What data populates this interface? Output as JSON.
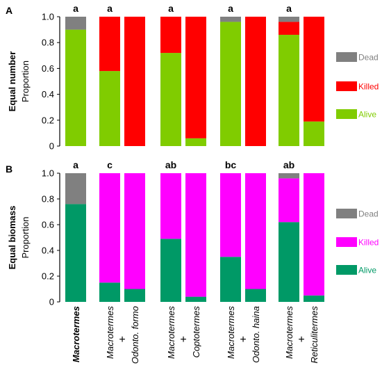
{
  "chart_data": {
    "type": "bar",
    "stacked": true,
    "groups": [
      {
        "label_top": "Macrotermes",
        "label_bottom": "",
        "bold": true,
        "bars": [
          "Macrotermes"
        ]
      },
      {
        "label_top": "Macrotermes",
        "label_bottom": "Odonto. formo",
        "bold": false,
        "bars": [
          "Macrotermes",
          "Odonto. formo"
        ]
      },
      {
        "label_top": "Macrotermes",
        "label_bottom": "Coptotermes",
        "bold": false,
        "bars": [
          "Macrotermes",
          "Coptotermes"
        ]
      },
      {
        "label_top": "Macrotermes",
        "label_bottom": "Odonto. haina",
        "bold": false,
        "bars": [
          "Macrotermes",
          "Odonto. haina"
        ]
      },
      {
        "label_top": "Macrotermes",
        "label_bottom": "Reticulitermes",
        "bold": false,
        "bars": [
          "Macrotermes",
          "Reticulitermes"
        ]
      }
    ],
    "plus_sign": "+",
    "panels": [
      {
        "panel_label": "A",
        "ylabel_main": "Equal number",
        "ylabel_sub": "Proportion",
        "ylim": [
          0,
          1
        ],
        "yticks": [
          "0",
          "0.2",
          "0.4",
          "0.6",
          "0.8",
          "1.0"
        ],
        "letters": [
          "a",
          "a",
          "a",
          "a",
          "a"
        ],
        "legend": [
          {
            "name": "Dead",
            "color": "#808080"
          },
          {
            "name": "Killed",
            "color": "#ff0000"
          },
          {
            "name": "Alive",
            "color": "#80cc00"
          }
        ],
        "series_order": [
          "Alive",
          "Killed",
          "Dead"
        ],
        "bars": [
          [
            {
              "Alive": 0.9,
              "Killed": 0.0,
              "Dead": 0.1
            }
          ],
          [
            {
              "Alive": 0.58,
              "Killed": 0.42,
              "Dead": 0.0
            },
            {
              "Alive": 0.0,
              "Killed": 1.0,
              "Dead": 0.0
            }
          ],
          [
            {
              "Alive": 0.72,
              "Killed": 0.28,
              "Dead": 0.0
            },
            {
              "Alive": 0.06,
              "Killed": 0.94,
              "Dead": 0.0
            }
          ],
          [
            {
              "Alive": 0.96,
              "Killed": 0.0,
              "Dead": 0.04
            },
            {
              "Alive": 0.0,
              "Killed": 1.0,
              "Dead": 0.0
            }
          ],
          [
            {
              "Alive": 0.86,
              "Killed": 0.1,
              "Dead": 0.04
            },
            {
              "Alive": 0.19,
              "Killed": 0.81,
              "Dead": 0.0
            }
          ]
        ]
      },
      {
        "panel_label": "B",
        "ylabel_main": "Equal biomass",
        "ylabel_sub": "Proportion",
        "ylim": [
          0,
          1
        ],
        "yticks": [
          "0",
          "0.2",
          "0.4",
          "0.6",
          "0.8",
          "1.0"
        ],
        "letters": [
          "a",
          "c",
          "ab",
          "bc",
          "ab"
        ],
        "legend": [
          {
            "name": "Dead",
            "color": "#808080"
          },
          {
            "name": "Killed",
            "color": "#ff00ff"
          },
          {
            "name": "Alive",
            "color": "#009966"
          }
        ],
        "series_order": [
          "Alive",
          "Killed",
          "Dead"
        ],
        "bars": [
          [
            {
              "Alive": 0.76,
              "Killed": 0.0,
              "Dead": 0.24
            }
          ],
          [
            {
              "Alive": 0.15,
              "Killed": 0.85,
              "Dead": 0.0
            },
            {
              "Alive": 0.1,
              "Killed": 0.9,
              "Dead": 0.0
            }
          ],
          [
            {
              "Alive": 0.49,
              "Killed": 0.51,
              "Dead": 0.0
            },
            {
              "Alive": 0.04,
              "Killed": 0.96,
              "Dead": 0.0
            }
          ],
          [
            {
              "Alive": 0.35,
              "Killed": 0.65,
              "Dead": 0.0
            },
            {
              "Alive": 0.1,
              "Killed": 0.9,
              "Dead": 0.0
            }
          ],
          [
            {
              "Alive": 0.62,
              "Killed": 0.34,
              "Dead": 0.04
            },
            {
              "Alive": 0.05,
              "Killed": 0.95,
              "Dead": 0.0
            }
          ]
        ]
      }
    ]
  }
}
